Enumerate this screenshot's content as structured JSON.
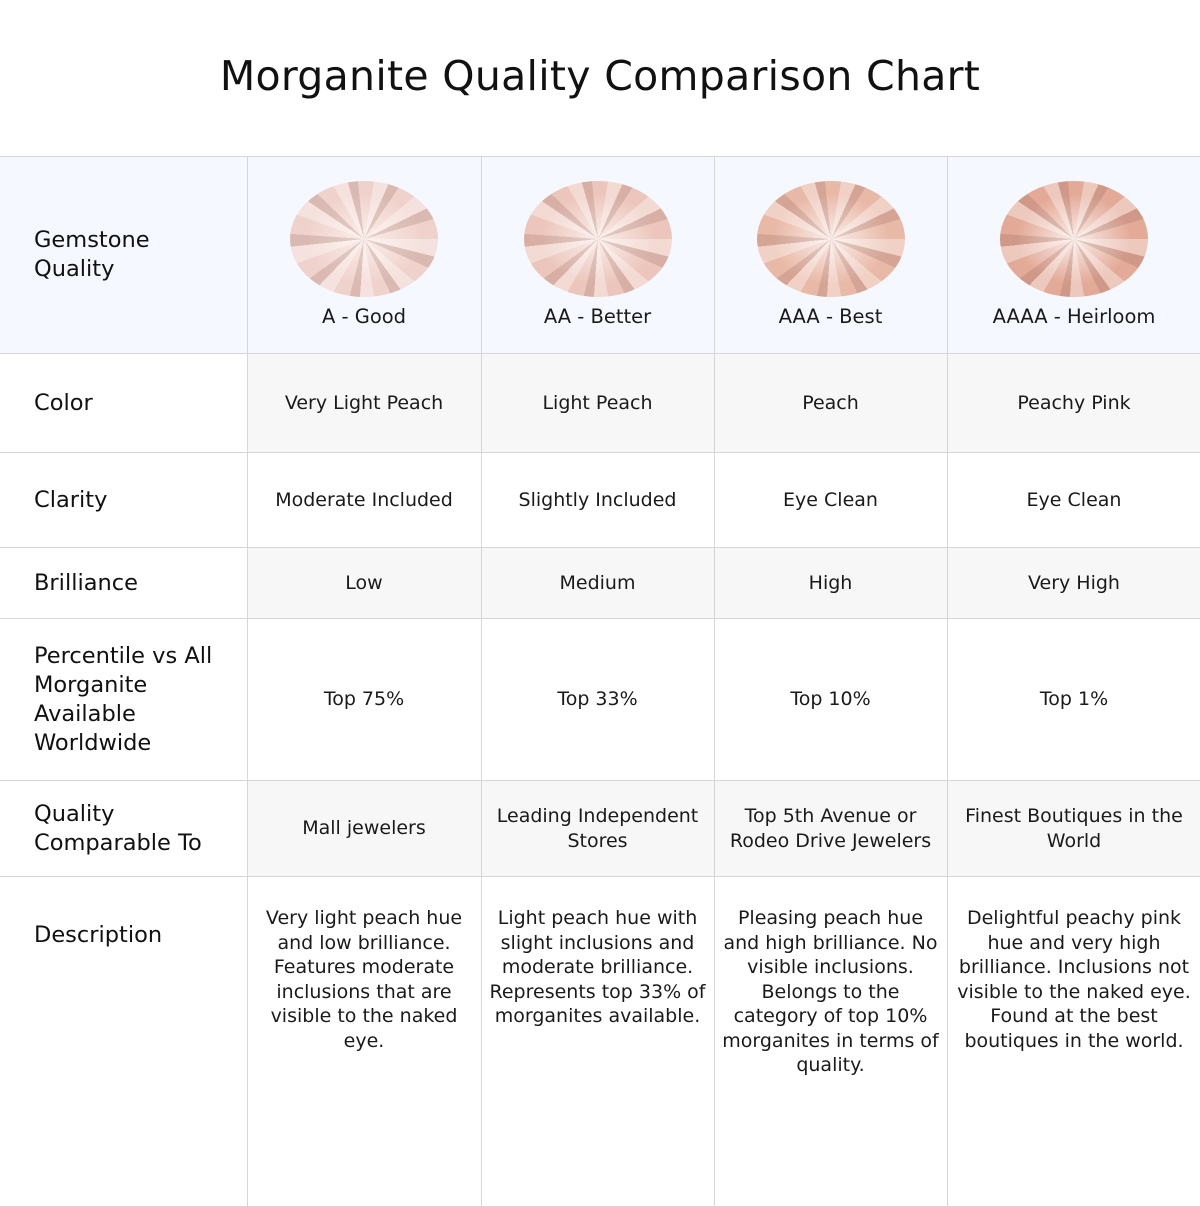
{
  "title": "Morganite Quality Comparison Chart",
  "colors": {
    "header_bg": "#f5f9ff",
    "alt_row_bg": "#f7f7f7",
    "border": "#d6d6d6"
  },
  "header_label": "Gemstone Quality",
  "grades": [
    {
      "label": "A - Good",
      "gem_color": "#f0d2cc"
    },
    {
      "label": "AA - Better",
      "gem_color": "#ecc6bc"
    },
    {
      "label": "AAA - Best",
      "gem_color": "#e9b9a8"
    },
    {
      "label": "AAAA - Heirloom",
      "gem_color": "#e3aa98"
    }
  ],
  "rows": [
    {
      "label": "Color",
      "values": [
        "Very Light Peach",
        "Light Peach",
        "Peach",
        "Peachy Pink"
      ]
    },
    {
      "label": "Clarity",
      "values": [
        "Moderate Included",
        "Slightly Included",
        "Eye Clean",
        "Eye Clean"
      ]
    },
    {
      "label": "Brilliance",
      "values": [
        "Low",
        "Medium",
        "High",
        "Very High"
      ]
    },
    {
      "label": "Percentile vs All Morganite Available Worldwide",
      "values": [
        "Top 75%",
        "Top 33%",
        "Top 10%",
        "Top 1%"
      ]
    },
    {
      "label": "Quality Comparable To",
      "values": [
        "Mall jewelers",
        "Leading Independent Stores",
        "Top 5th Avenue or Rodeo Drive Jewelers",
        "Finest Boutiques in the World"
      ]
    },
    {
      "label": "Description",
      "values": [
        "Very light peach hue and low brilliance. Features moderate inclusions that are visible to the naked eye.",
        "Light peach hue with slight inclusions and moderate brilliance. Represents top 33% of morganites available.",
        "Pleasing peach hue and high brilliance. No visible inclusions. Belongs to the category of top 10% morganites in terms of quality.",
        "Delightful peachy pink hue and very high brilliance. Inclusions not visible to the naked eye. Found at the best boutiques in the world."
      ]
    }
  ]
}
